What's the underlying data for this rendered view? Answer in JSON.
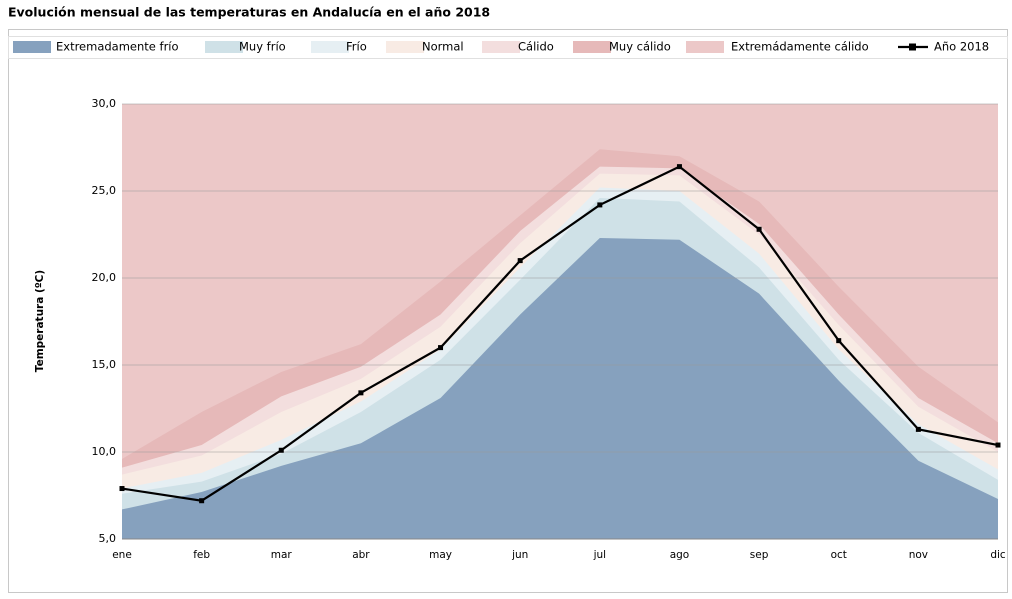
{
  "chart_data": {
    "type": "band-line",
    "title": "Evolución mensual de las temperaturas en Andalucía en el año 2018",
    "y_label": "Temperatura (ºC)",
    "categories": [
      "ene",
      "feb",
      "mar",
      "abr",
      "may",
      "jun",
      "jul",
      "ago",
      "sep",
      "oct",
      "nov",
      "dic"
    ],
    "ylim": [
      5,
      30
    ],
    "yticks": [
      {
        "value": 5,
        "label": "5,0"
      },
      {
        "value": 10,
        "label": "10,0"
      },
      {
        "value": 15,
        "label": "15,0"
      },
      {
        "value": 20,
        "label": "20,0"
      },
      {
        "value": 25,
        "label": "25,0"
      },
      {
        "value": 30,
        "label": "30,0"
      }
    ],
    "grid": true,
    "bands": [
      {
        "name": "Extremadamente frío",
        "color": "#86a1be",
        "values": [
          6.7,
          7.7,
          9.2,
          10.5,
          13.1,
          17.9,
          22.3,
          22.2,
          19.1,
          14.1,
          9.5,
          7.3
        ]
      },
      {
        "name": "Muy frío",
        "color": "#cfe1e7",
        "values": [
          7.6,
          8.3,
          9.9,
          12.3,
          15.3,
          19.9,
          24.6,
          24.4,
          20.6,
          15.3,
          11.1,
          8.4
        ]
      },
      {
        "name": "Frío",
        "color": "#e6eff3",
        "values": [
          7.9,
          8.8,
          10.7,
          12.9,
          15.9,
          20.6,
          25.2,
          25.0,
          21.4,
          15.9,
          11.6,
          9.0
        ]
      },
      {
        "name": "Normal",
        "color": "#f8ebe4",
        "values": [
          8.7,
          9.8,
          12.3,
          14.2,
          17.2,
          22.0,
          26.0,
          25.9,
          22.5,
          17.3,
          12.6,
          10.0
        ]
      },
      {
        "name": "Cálido",
        "color": "#f3dede",
        "values": [
          9.1,
          10.4,
          13.2,
          14.9,
          17.9,
          22.7,
          26.4,
          26.3,
          23.1,
          17.9,
          13.1,
          10.5
        ]
      },
      {
        "name": "Muy cálido",
        "color": "#e6b9b9",
        "values": [
          9.6,
          12.3,
          14.6,
          16.2,
          19.8,
          23.6,
          27.4,
          27.0,
          24.4,
          19.5,
          14.9,
          11.7
        ]
      },
      {
        "name": "Extremádamente cálido",
        "color": "#ecc8c8"
      }
    ],
    "series": [
      {
        "name": "Año 2018",
        "color": "#000000",
        "values": [
          7.9,
          7.2,
          10.1,
          13.4,
          16.0,
          21.0,
          24.2,
          26.4,
          22.8,
          16.4,
          11.3,
          10.4
        ]
      }
    ]
  }
}
